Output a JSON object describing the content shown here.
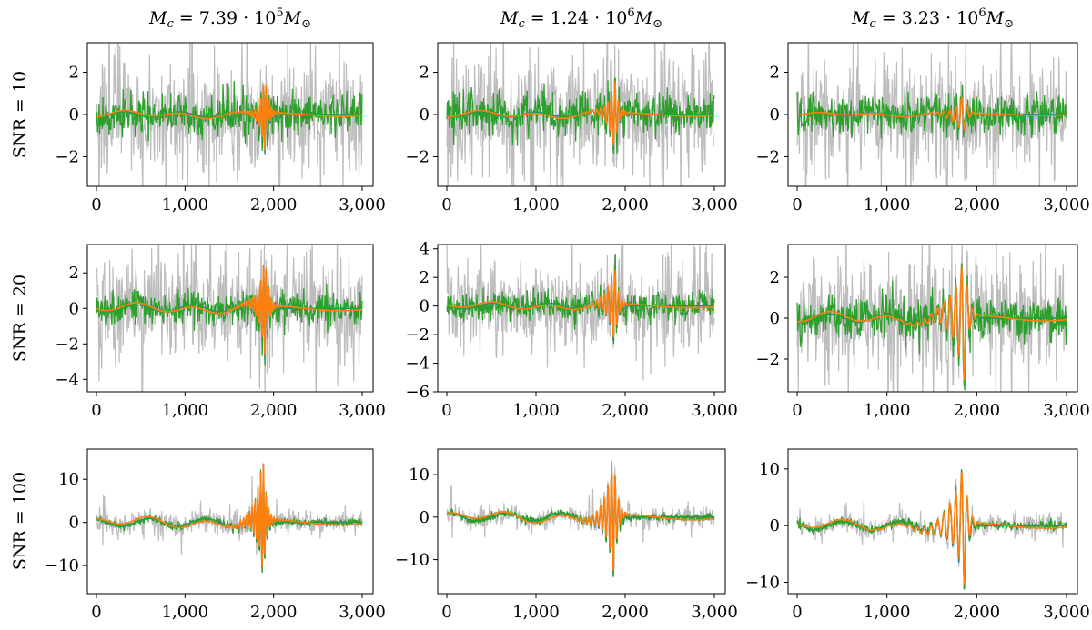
{
  "columns": [
    {
      "title_main": "M",
      "title_sub": "c",
      "title_mid": " = 7.39 · 10",
      "title_exp": "5",
      "title_tail": "M",
      "title_tail_sub": "⊙"
    },
    {
      "title_main": "M",
      "title_sub": "c",
      "title_mid": " = 1.24 · 10",
      "title_exp": "6",
      "title_tail": "M",
      "title_tail_sub": "⊙"
    },
    {
      "title_main": "M",
      "title_sub": "c",
      "title_mid": " = 3.23 · 10",
      "title_exp": "6",
      "title_tail": "M",
      "title_tail_sub": "⊙"
    }
  ],
  "rows": [
    {
      "label": "SNR = 10"
    },
    {
      "label": "SNR = 20"
    },
    {
      "label": "SNR = 100"
    }
  ],
  "colors": {
    "noisy": "#bdbdbd",
    "truth": "#1f77b4",
    "reconstruction_a": "#2ca02c",
    "reconstruction_b": "#ff7f0e",
    "clean": "#555555"
  },
  "chart_data": [
    {
      "type": "line",
      "row": 0,
      "col": 0,
      "xlim": [
        0,
        3000
      ],
      "ylim": [
        -3.4,
        3.4
      ],
      "xticks": [
        0,
        1000,
        2000,
        3000
      ],
      "xtick_labels": [
        "0",
        "1,000",
        "2,000",
        "3,000"
      ],
      "yticks": [
        -2,
        0,
        2
      ],
      "ytick_labels": [
        "−2",
        "0",
        "2"
      ],
      "merger": 1900,
      "peak": 2.1,
      "noise": 2.6,
      "green": 1.1,
      "spread": 120,
      "freq": 0.09,
      "seed": 11,
      "series": []
    },
    {
      "type": "line",
      "row": 0,
      "col": 1,
      "xlim": [
        0,
        3000
      ],
      "ylim": [
        -3.4,
        3.4
      ],
      "xticks": [
        0,
        1000,
        2000,
        3000
      ],
      "xtick_labels": [
        "0",
        "1,000",
        "2,000",
        "3,000"
      ],
      "yticks": [
        -2,
        0,
        2
      ],
      "ytick_labels": [
        "−2",
        "0",
        "2"
      ],
      "merger": 1880,
      "peak": 2.0,
      "noise": 2.6,
      "green": 1.1,
      "spread": 150,
      "freq": 0.07,
      "seed": 23,
      "series": []
    },
    {
      "type": "line",
      "row": 0,
      "col": 2,
      "xlim": [
        0,
        3000
      ],
      "ylim": [
        -3.4,
        3.4
      ],
      "xticks": [
        0,
        1000,
        2000,
        3000
      ],
      "xtick_labels": [
        "0",
        "1,000",
        "2,000",
        "3,000"
      ],
      "yticks": [
        -2,
        0,
        2
      ],
      "ytick_labels": [
        "−2",
        "0",
        "2"
      ],
      "merger": 1850,
      "peak": 1.1,
      "noise": 2.5,
      "green": 1.0,
      "spread": 220,
      "freq": 0.045,
      "seed": 37,
      "series": []
    },
    {
      "type": "line",
      "row": 1,
      "col": 0,
      "xlim": [
        0,
        3000
      ],
      "ylim": [
        -4.7,
        3.6
      ],
      "xticks": [
        0,
        1000,
        2000,
        3000
      ],
      "xtick_labels": [
        "0",
        "1,000",
        "2,000",
        "3,000"
      ],
      "yticks": [
        -4,
        -2,
        0,
        2
      ],
      "ytick_labels": [
        "−4",
        "−2",
        "0",
        "2"
      ],
      "merger": 1900,
      "peak": 3.3,
      "noise": 2.8,
      "green": 1.1,
      "spread": 140,
      "freq": 0.09,
      "seed": 41,
      "series": []
    },
    {
      "type": "line",
      "row": 1,
      "col": 1,
      "xlim": [
        0,
        3000
      ],
      "ylim": [
        -6.0,
        4.3
      ],
      "xticks": [
        0,
        1000,
        2000,
        3000
      ],
      "xtick_labels": [
        "0",
        "1,000",
        "2,000",
        "3,000"
      ],
      "yticks": [
        -6,
        -4,
        -2,
        0,
        2,
        4
      ],
      "ytick_labels": [
        "−6",
        "−4",
        "−2",
        "0",
        "2",
        "4"
      ],
      "merger": 1880,
      "peak": 3.2,
      "noise": 3.0,
      "green": 1.2,
      "spread": 170,
      "freq": 0.07,
      "seed": 53,
      "series": []
    },
    {
      "type": "line",
      "row": 1,
      "col": 2,
      "xlim": [
        0,
        3000
      ],
      "ylim": [
        -3.6,
        3.6
      ],
      "xticks": [
        0,
        1000,
        2000,
        3000
      ],
      "xtick_labels": [
        "0",
        "1,000",
        "2,000",
        "3,000"
      ],
      "yticks": [
        -2,
        0,
        2
      ],
      "ytick_labels": [
        "−2",
        "0",
        "2"
      ],
      "merger": 1860,
      "peak": 3.4,
      "noise": 2.4,
      "green": 1.1,
      "spread": 280,
      "freq": 0.045,
      "seed": 67,
      "series": []
    },
    {
      "type": "line",
      "row": 2,
      "col": 0,
      "xlim": [
        0,
        3000
      ],
      "ylim": [
        -16.5,
        17
      ],
      "xticks": [
        0,
        1000,
        2000,
        3000
      ],
      "xtick_labels": [
        "0",
        "1,000",
        "2,000",
        "3,000"
      ],
      "yticks": [
        -10,
        0,
        10
      ],
      "ytick_labels": [
        "−10",
        "0",
        "10"
      ],
      "merger": 1880,
      "peak": 15.5,
      "noise": 2.5,
      "green": 1.0,
      "spread": 170,
      "freq": 0.09,
      "seed": 71,
      "series": []
    },
    {
      "type": "line",
      "row": 2,
      "col": 1,
      "xlim": [
        0,
        3000
      ],
      "ylim": [
        -18,
        16
      ],
      "xticks": [
        0,
        1000,
        2000,
        3000
      ],
      "xtick_labels": [
        "0",
        "1,000",
        "2,000",
        "3,000"
      ],
      "yticks": [
        -10,
        0,
        10
      ],
      "ytick_labels": [
        "−10",
        "0",
        "10"
      ],
      "merger": 1870,
      "peak": 16,
      "noise": 2.5,
      "green": 1.0,
      "spread": 190,
      "freq": 0.07,
      "seed": 83,
      "series": []
    },
    {
      "type": "line",
      "row": 2,
      "col": 2,
      "xlim": [
        0,
        3000
      ],
      "ylim": [
        -12,
        13.5
      ],
      "xticks": [
        0,
        1000,
        2000,
        3000
      ],
      "xtick_labels": [
        "0",
        "1,000",
        "2,000",
        "3,000"
      ],
      "yticks": [
        -10,
        0,
        10
      ],
      "ytick_labels": [
        "−10",
        "0",
        "10"
      ],
      "merger": 1860,
      "peak": 11.5,
      "noise": 1.8,
      "green": 0.9,
      "spread": 300,
      "freq": 0.045,
      "seed": 97,
      "series": []
    }
  ]
}
